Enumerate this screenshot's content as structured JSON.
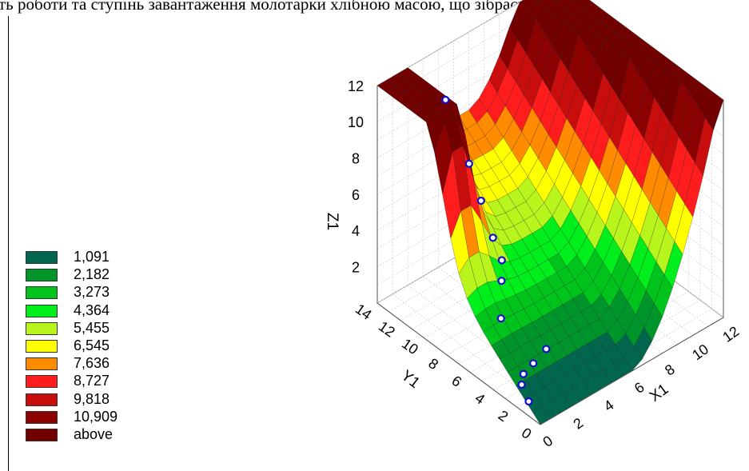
{
  "title": "ть роботи та ступінь завантаження молотарки хлібною масою, що зібрасті",
  "legend": [
    {
      "label": "1,091",
      "color": "#00664d"
    },
    {
      "label": "2,182",
      "color": "#00952b"
    },
    {
      "label": "3,273",
      "color": "#00c41c"
    },
    {
      "label": "4,364",
      "color": "#00ee1c"
    },
    {
      "label": "5,455",
      "color": "#b7f51c"
    },
    {
      "label": "6,545",
      "color": "#ffff00"
    },
    {
      "label": "7,636",
      "color": "#ff8c00"
    },
    {
      "label": "8,727",
      "color": "#ff1c1c"
    },
    {
      "label": "9,818",
      "color": "#c80d0d"
    },
    {
      "label": "10,909",
      "color": "#8b0000"
    },
    {
      "label": "above",
      "color": "#720000"
    }
  ],
  "chart_data": {
    "type": "surface",
    "zlabel": "Z1",
    "ylabel": "Y1",
    "xlabel": "X1",
    "z_ticks": [
      "2",
      "4",
      "6",
      "8",
      "10",
      "12"
    ],
    "y_ticks": [
      "0",
      "2",
      "4",
      "6",
      "8",
      "10",
      "12",
      "14"
    ],
    "x_ticks": [
      "0",
      "2",
      "4",
      "6",
      "8",
      "10",
      "12"
    ],
    "xlim": [
      0,
      12
    ],
    "ylim": [
      0,
      14
    ],
    "zlim": [
      0,
      12
    ],
    "points": [
      {
        "x": 0.0,
        "y": 1.0,
        "z": 0.8
      },
      {
        "x": 0.3,
        "y": 2.0,
        "z": 1.1
      },
      {
        "x": 0.8,
        "y": 2.5,
        "z": 1.2
      },
      {
        "x": 1.6,
        "y": 2.7,
        "z": 1.3
      },
      {
        "x": 2.6,
        "y": 2.9,
        "z": 1.5
      },
      {
        "x": 2.0,
        "y": 6.0,
        "z": 2.0
      },
      {
        "x": 2.8,
        "y": 7.0,
        "z": 3.2
      },
      {
        "x": 3.2,
        "y": 7.5,
        "z": 3.9
      },
      {
        "x": 3.0,
        "y": 8.0,
        "z": 5.0
      },
      {
        "x": 2.6,
        "y": 8.5,
        "z": 7.0
      },
      {
        "x": 2.2,
        "y": 9.0,
        "z": 9.0
      },
      {
        "x": 1.8,
        "y": 10.5,
        "z": 12.0
      }
    ]
  }
}
